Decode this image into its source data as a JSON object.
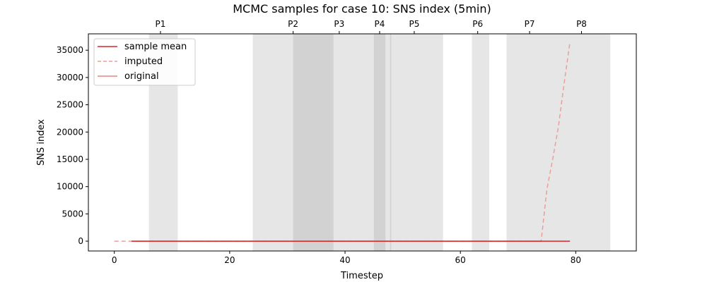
{
  "chart_data": {
    "type": "line",
    "title": "MCMC samples for case 10: SNS index (5min)",
    "xlabel": "Timestep",
    "ylabel": "SNS index",
    "xlim": [
      -4.5,
      90.5
    ],
    "ylim": [
      -1800,
      38000
    ],
    "xticks": [
      0,
      20,
      40,
      60,
      80
    ],
    "yticks": [
      0,
      5000,
      10000,
      15000,
      20000,
      25000,
      30000,
      35000
    ],
    "grid": false,
    "legend_position": "upper left",
    "period_bands": [
      {
        "label": "P1",
        "x0": 6,
        "x1": 11
      },
      {
        "label": "P2",
        "x0": 24,
        "x1": 38
      },
      {
        "label": "P3",
        "x0": 31,
        "x1": 48
      },
      {
        "label": "P4",
        "x0": 45,
        "x1": 47
      },
      {
        "label": "P5",
        "x0": 47.8,
        "x1": 57
      },
      {
        "label": "P6",
        "x0": 62,
        "x1": 65
      },
      {
        "label": "P7",
        "x0": 68,
        "x1": 77
      },
      {
        "label": "P8",
        "x0": 77,
        "x1": 86
      }
    ],
    "period_label_x": {
      "P1": 8,
      "P2": 31,
      "P3": 39,
      "P4": 46,
      "P5": 52,
      "P6": 63,
      "P7": 72,
      "P8": 81
    },
    "series": [
      {
        "name": "sample mean",
        "style": "solid",
        "color": "#d62728",
        "x": [
          3,
          79
        ],
        "y": [
          0,
          0
        ]
      },
      {
        "name": "imputed",
        "style": "dashed",
        "color": "#e8a09a",
        "x": [
          0,
          3,
          74,
          75,
          76,
          77,
          78,
          79
        ],
        "y": [
          0,
          0,
          0,
          9500,
          15000,
          21000,
          29000,
          36500
        ]
      },
      {
        "name": "original",
        "style": "solid",
        "color": "#e8868a",
        "x": [
          3,
          74
        ],
        "y": [
          0,
          0
        ]
      }
    ]
  }
}
